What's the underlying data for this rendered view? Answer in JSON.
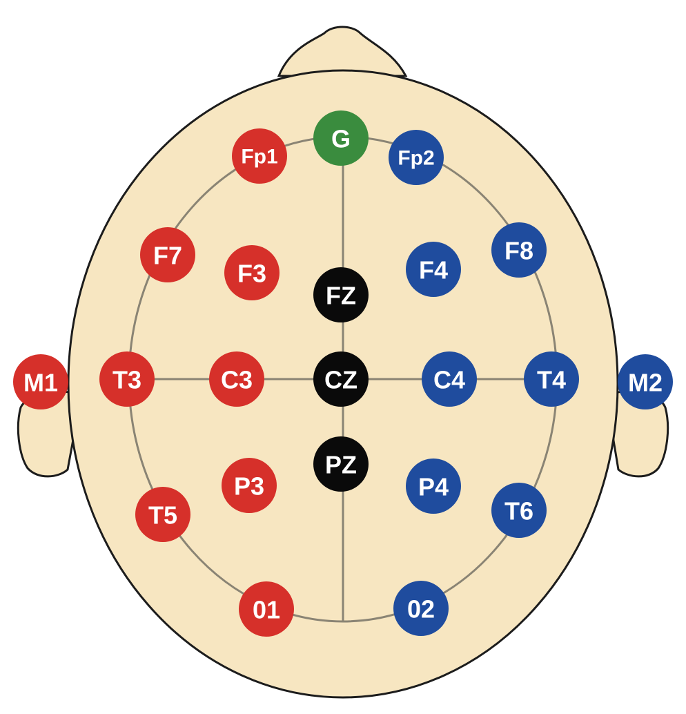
{
  "colors": {
    "skin": "#f7e6c1",
    "skin_outline": "#1c1c1c",
    "grid_line": "#8a8474",
    "left": "#d6302a",
    "right": "#1f4c9e",
    "midline": "#0a0a0a",
    "ground": "#3a8c3e"
  },
  "electrodes": [
    {
      "id": "G",
      "label": "G",
      "group": "ground"
    },
    {
      "id": "Fp1",
      "label": "Fp1",
      "group": "left"
    },
    {
      "id": "Fp2",
      "label": "Fp2",
      "group": "right"
    },
    {
      "id": "F7",
      "label": "F7",
      "group": "left"
    },
    {
      "id": "F3",
      "label": "F3",
      "group": "left"
    },
    {
      "id": "FZ",
      "label": "FZ",
      "group": "midline"
    },
    {
      "id": "F4",
      "label": "F4",
      "group": "right"
    },
    {
      "id": "F8",
      "label": "F8",
      "group": "right"
    },
    {
      "id": "M1",
      "label": "M1",
      "group": "left"
    },
    {
      "id": "T3",
      "label": "T3",
      "group": "left"
    },
    {
      "id": "C3",
      "label": "C3",
      "group": "left"
    },
    {
      "id": "CZ",
      "label": "CZ",
      "group": "midline"
    },
    {
      "id": "C4",
      "label": "C4",
      "group": "right"
    },
    {
      "id": "T4",
      "label": "T4",
      "group": "right"
    },
    {
      "id": "M2",
      "label": "M2",
      "group": "right"
    },
    {
      "id": "PZ",
      "label": "PZ",
      "group": "midline"
    },
    {
      "id": "P3",
      "label": "P3",
      "group": "left"
    },
    {
      "id": "P4",
      "label": "P4",
      "group": "right"
    },
    {
      "id": "T5",
      "label": "T5",
      "group": "left"
    },
    {
      "id": "T6",
      "label": "T6",
      "group": "right"
    },
    {
      "id": "O1",
      "label": "01",
      "group": "left"
    },
    {
      "id": "O2",
      "label": "02",
      "group": "right"
    }
  ]
}
